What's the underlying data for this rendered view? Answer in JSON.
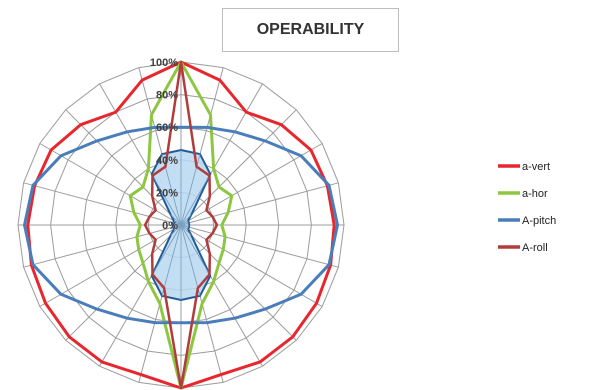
{
  "chart_data": {
    "type": "radar",
    "title": "OPERABILITY",
    "r_ticks": [
      "0%",
      "20%",
      "40%",
      "60%",
      "80%",
      "100%"
    ],
    "r_range": [
      0,
      100
    ],
    "num_axes": 24,
    "grid": true,
    "legend_position": "right",
    "series": [
      {
        "name": "a-vert",
        "color": "#e8262d",
        "values": [
          100,
          92,
          80,
          87,
          92,
          93,
          94,
          95,
          96,
          97,
          97,
          95,
          100,
          95,
          97,
          97,
          96,
          95,
          94,
          93,
          92,
          87,
          80,
          92
        ]
      },
      {
        "name": "a-hor",
        "color": "#8dc63f",
        "values": [
          100,
          70,
          40,
          33,
          36,
          30,
          25,
          28,
          30,
          33,
          40,
          50,
          100,
          50,
          40,
          33,
          30,
          28,
          25,
          30,
          36,
          33,
          40,
          70
        ]
      },
      {
        "name": "A-pitch",
        "color": "#4a7ebb",
        "values": [
          60,
          62,
          66,
          73,
          85,
          94,
          96,
          94,
          85,
          73,
          66,
          62,
          60,
          62,
          66,
          73,
          85,
          94,
          96,
          94,
          85,
          73,
          66,
          62
        ]
      },
      {
        "name": "A-roll",
        "color": "#b23b3b",
        "values": [
          100,
          37,
          35,
          25,
          18,
          20,
          22,
          20,
          18,
          25,
          35,
          40,
          100,
          40,
          35,
          25,
          18,
          20,
          22,
          20,
          18,
          25,
          35,
          37
        ]
      }
    ],
    "filled_area": {
      "color": "#b8d8f0",
      "stroke": "#1f5c99",
      "values": [
        46,
        45,
        36,
        9,
        5,
        5,
        5,
        5,
        5,
        9,
        36,
        45,
        46,
        45,
        36,
        9,
        5,
        5,
        5,
        5,
        5,
        9,
        36,
        45
      ]
    }
  }
}
